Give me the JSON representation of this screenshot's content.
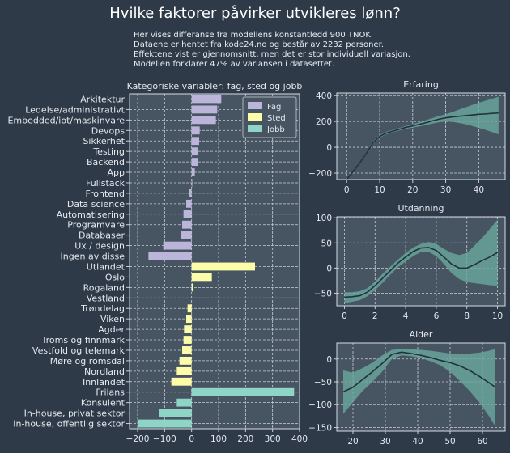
{
  "title": "Hvilke faktorer påvirker utvikleres lønn?",
  "subtitle": [
    "Her vises differanse fra modellens konstantledd 900 TNOK.",
    "Dataene er hentet fra kode24.no og består av 2232 personer.",
    "Effektene vist er gjennomsnitt, men det er stor individuell variasjon.",
    "Modellen forklarer 47% av variansen i datasettet."
  ],
  "colors": {
    "background": "#2e3a48",
    "plot_bg": "#475462",
    "fag": "#bab5d9",
    "sted": "#fdfca9",
    "jobb": "#8fd5c7",
    "band": "#6aa89f",
    "line": "#22313a"
  },
  "chart_data": [
    {
      "type": "bar",
      "orientation": "horizontal",
      "title": "Kategoriske variabler: fag, sted og jobb",
      "xlim": [
        -230,
        400
      ],
      "xticks": [
        -200,
        -100,
        0,
        100,
        200,
        300,
        400
      ],
      "grid": true,
      "legend_position": "top-right",
      "legend": [
        "Fag",
        "Sted",
        "Jobb"
      ],
      "categories": [
        "Arkitektur",
        "Ledelse/administrativt",
        "Embedded/iot/maskinvare",
        "Devops",
        "Sikkerhet",
        "Testing",
        "Backend",
        "App",
        "Fullstack",
        "Frontend",
        "Data science",
        "Automatisering",
        "Programvare",
        "Databaser",
        "Ux / design",
        "Ingen av disse",
        "Utlandet",
        "Oslo",
        "Rogaland",
        "Vestland",
        "Trøndelag",
        "Viken",
        "Agder",
        "Troms og finnmark",
        "Vestfold og telemark",
        "Møre og romsdal",
        "Nordland",
        "Innlandet",
        "Frilans",
        "Konsulent",
        "In-house, privat sektor",
        "In-house, offentlig sektor"
      ],
      "groups": [
        "Fag",
        "Fag",
        "Fag",
        "Fag",
        "Fag",
        "Fag",
        "Fag",
        "Fag",
        "Fag",
        "Fag",
        "Fag",
        "Fag",
        "Fag",
        "Fag",
        "Fag",
        "Fag",
        "Sted",
        "Sted",
        "Sted",
        "Sted",
        "Sted",
        "Sted",
        "Sted",
        "Sted",
        "Sted",
        "Sted",
        "Sted",
        "Sted",
        "Jobb",
        "Jobb",
        "Jobb",
        "Jobb"
      ],
      "values": [
        110,
        95,
        90,
        30,
        28,
        25,
        22,
        12,
        2,
        -10,
        -20,
        -30,
        -35,
        -40,
        -105,
        -160,
        235,
        75,
        5,
        0,
        -15,
        -20,
        -28,
        -30,
        -35,
        -45,
        -55,
        -75,
        380,
        -55,
        -120,
        -200
      ]
    },
    {
      "type": "line",
      "title": "Erfaring",
      "xlim": [
        -3,
        48
      ],
      "ylim": [
        -250,
        420
      ],
      "xticks": [
        0,
        10,
        20,
        30,
        40
      ],
      "yticks": [
        -200,
        0,
        200,
        400
      ],
      "x": [
        0,
        2,
        4,
        6,
        8,
        10,
        12,
        14,
        16,
        18,
        20,
        22,
        24,
        26,
        28,
        30,
        32,
        34,
        36,
        38,
        40,
        42,
        44,
        46
      ],
      "y": [
        -250,
        -185,
        -120,
        -45,
        35,
        85,
        110,
        125,
        140,
        155,
        165,
        178,
        190,
        205,
        218,
        228,
        235,
        240,
        245,
        250,
        255,
        258,
        262,
        265
      ],
      "lower": [
        -255,
        -192,
        -128,
        -55,
        25,
        75,
        100,
        116,
        130,
        144,
        152,
        162,
        172,
        184,
        194,
        200,
        198,
        188,
        178,
        165,
        150,
        135,
        118,
        100
      ],
      "upper": [
        -245,
        -178,
        -112,
        -35,
        45,
        95,
        120,
        134,
        150,
        166,
        178,
        194,
        210,
        226,
        242,
        256,
        272,
        292,
        310,
        328,
        345,
        360,
        375,
        390
      ]
    },
    {
      "type": "line",
      "title": "Utdanning",
      "xlim": [
        -0.5,
        10.5
      ],
      "ylim": [
        -75,
        102
      ],
      "xticks": [
        0,
        2,
        4,
        6,
        8,
        10
      ],
      "yticks": [
        -50,
        0,
        50,
        100
      ],
      "x": [
        0,
        0.5,
        1,
        1.5,
        2,
        2.5,
        3,
        3.5,
        4,
        4.5,
        5,
        5.5,
        6,
        6.5,
        7,
        7.5,
        8,
        8.5,
        9,
        9.5,
        10
      ],
      "y": [
        -58,
        -57,
        -55,
        -48,
        -35,
        -20,
        -5,
        10,
        22,
        33,
        40,
        41,
        35,
        22,
        8,
        0,
        0,
        7,
        15,
        22,
        31
      ],
      "lower": [
        -70,
        -67,
        -64,
        -56,
        -44,
        -29,
        -13,
        2,
        13,
        24,
        32,
        32,
        24,
        8,
        -10,
        -22,
        -28,
        -30,
        -32,
        -34,
        -35
      ],
      "upper": [
        -48,
        -48,
        -46,
        -40,
        -27,
        -11,
        3,
        17,
        30,
        41,
        48,
        52,
        48,
        38,
        30,
        26,
        30,
        45,
        60,
        78,
        96
      ]
    },
    {
      "type": "line",
      "title": "Alder",
      "xlim": [
        15,
        67
      ],
      "ylim": [
        -158,
        35
      ],
      "xticks": [
        20,
        30,
        40,
        50,
        60
      ],
      "yticks": [
        -150,
        -100,
        -50,
        0
      ],
      "x": [
        17,
        20,
        23,
        26,
        29,
        32,
        35,
        38,
        41,
        44,
        47,
        50,
        53,
        56,
        59,
        62,
        64
      ],
      "y": [
        -72,
        -62,
        -45,
        -28,
        -10,
        10,
        15,
        12,
        8,
        3,
        -3,
        -8,
        -15,
        -25,
        -38,
        -52,
        -62
      ],
      "lower": [
        -120,
        -95,
        -70,
        -50,
        -28,
        0,
        8,
        6,
        2,
        -5,
        -14,
        -28,
        -48,
        -70,
        -95,
        -125,
        -148
      ],
      "upper": [
        -25,
        -30,
        -20,
        -8,
        8,
        20,
        22,
        22,
        20,
        18,
        15,
        12,
        10,
        12,
        14,
        18,
        22
      ]
    }
  ]
}
